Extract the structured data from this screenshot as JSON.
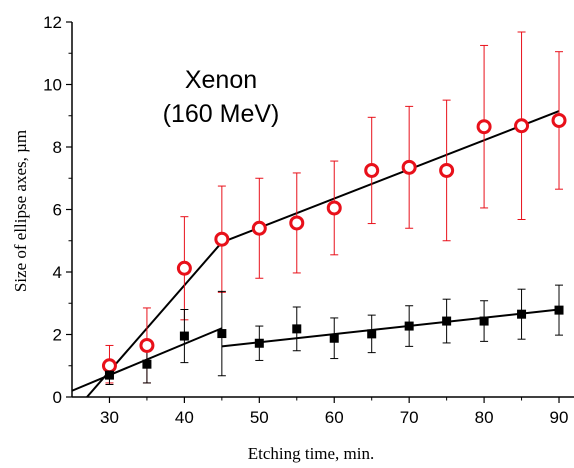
{
  "chart_data": {
    "type": "scatter",
    "title": "",
    "annotation_lines": [
      "Xenon",
      "(160 MeV)"
    ],
    "xlabel": "Etching time, min.",
    "ylabel": "Size of ellipse axes, µm",
    "xlim": [
      25,
      92
    ],
    "ylim": [
      0,
      12
    ],
    "x_ticks": [
      30,
      40,
      50,
      60,
      70,
      80,
      90
    ],
    "y_ticks": [
      0,
      2,
      4,
      6,
      8,
      10,
      12
    ],
    "x_tick_labels": [
      "30",
      "40",
      "50",
      "60",
      "70",
      "80",
      "90"
    ],
    "y_tick_labels": [
      "0",
      "2",
      "4",
      "6",
      "8",
      "10",
      "12"
    ],
    "grid": false,
    "series": [
      {
        "marker": "open-circle",
        "color": "#e8101a",
        "points": [
          {
            "x": 30,
            "y": 1.0,
            "err_lo": 0.55,
            "err_hi": 0.65
          },
          {
            "x": 35,
            "y": 1.65,
            "err_lo": 1.2,
            "err_hi": 1.2
          },
          {
            "x": 40,
            "y": 4.12,
            "err_lo": 1.65,
            "err_hi": 1.65
          },
          {
            "x": 45,
            "y": 5.05,
            "err_lo": 1.7,
            "err_hi": 1.7
          },
          {
            "x": 50,
            "y": 5.4,
            "err_lo": 1.6,
            "err_hi": 1.6
          },
          {
            "x": 55,
            "y": 5.57,
            "err_lo": 1.6,
            "err_hi": 1.6
          },
          {
            "x": 60,
            "y": 6.05,
            "err_lo": 1.5,
            "err_hi": 1.5
          },
          {
            "x": 65,
            "y": 7.25,
            "err_lo": 1.7,
            "err_hi": 1.7
          },
          {
            "x": 70,
            "y": 7.35,
            "err_lo": 1.95,
            "err_hi": 1.95
          },
          {
            "x": 75,
            "y": 7.25,
            "err_lo": 2.25,
            "err_hi": 2.25
          },
          {
            "x": 80,
            "y": 8.65,
            "err_lo": 2.6,
            "err_hi": 2.6
          },
          {
            "x": 85,
            "y": 8.68,
            "err_lo": 3.0,
            "err_hi": 3.0
          },
          {
            "x": 90,
            "y": 8.85,
            "err_lo": 2.2,
            "err_hi": 2.2
          }
        ],
        "fit_lines": [
          {
            "x": [
              27,
              45
            ],
            "y": [
              0.0,
              4.95
            ]
          },
          {
            "x": [
              45,
              90
            ],
            "y": [
              4.95,
              9.15
            ]
          }
        ]
      },
      {
        "marker": "filled-square",
        "color": "#000000",
        "points": [
          {
            "x": 30,
            "y": 0.7,
            "err_lo": 0.3,
            "err_hi": 0.3
          },
          {
            "x": 35,
            "y": 1.05,
            "err_lo": 0.6,
            "err_hi": 0.6
          },
          {
            "x": 40,
            "y": 1.95,
            "err_lo": 0.85,
            "err_hi": 0.85
          },
          {
            "x": 45,
            "y": 2.03,
            "err_lo": 1.35,
            "err_hi": 1.35
          },
          {
            "x": 50,
            "y": 1.72,
            "err_lo": 0.55,
            "err_hi": 0.55
          },
          {
            "x": 55,
            "y": 2.18,
            "err_lo": 0.7,
            "err_hi": 0.7
          },
          {
            "x": 60,
            "y": 1.88,
            "err_lo": 0.65,
            "err_hi": 0.65
          },
          {
            "x": 65,
            "y": 2.02,
            "err_lo": 0.6,
            "err_hi": 0.6
          },
          {
            "x": 70,
            "y": 2.27,
            "err_lo": 0.65,
            "err_hi": 0.65
          },
          {
            "x": 75,
            "y": 2.43,
            "err_lo": 0.7,
            "err_hi": 0.7
          },
          {
            "x": 80,
            "y": 2.43,
            "err_lo": 0.65,
            "err_hi": 0.65
          },
          {
            "x": 85,
            "y": 2.65,
            "err_lo": 0.8,
            "err_hi": 0.8
          },
          {
            "x": 90,
            "y": 2.78,
            "err_lo": 0.8,
            "err_hi": 0.8
          }
        ],
        "fit_lines": [
          {
            "x": [
              25,
              45
            ],
            "y": [
              0.2,
              2.2
            ]
          },
          {
            "x": [
              45,
              90
            ],
            "y": [
              1.62,
              2.8
            ]
          }
        ]
      }
    ]
  }
}
